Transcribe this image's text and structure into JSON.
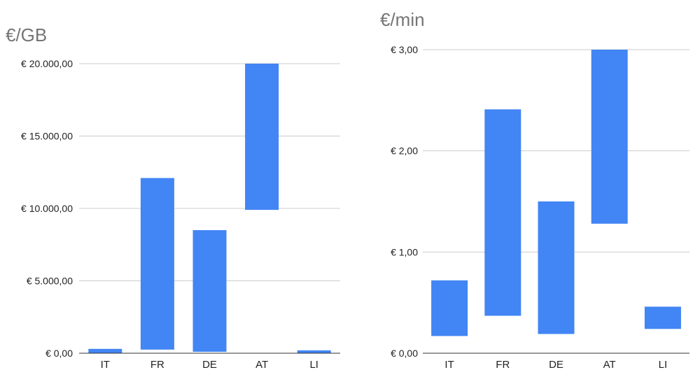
{
  "colors": {
    "bar": "#4285f4",
    "grid": "#cccccc",
    "baseline": "#333333",
    "title": "#757575",
    "text": "#222222"
  },
  "chart_data": [
    {
      "type": "bar",
      "subtype": "floating-range",
      "title": "€/GB",
      "xlabel": "",
      "ylabel": "",
      "categories": [
        "IT",
        "FR",
        "DE",
        "AT",
        "LI"
      ],
      "series": [
        {
          "ranges": [
            [
              0,
              300
            ],
            [
              250,
              12100
            ],
            [
              100,
              8500
            ],
            [
              9900,
              20000
            ],
            [
              0,
              200
            ]
          ]
        }
      ],
      "ylim": [
        0,
        20000
      ],
      "y_ticks": [
        0,
        5000,
        10000,
        15000,
        20000
      ],
      "y_tick_labels": [
        "€ 0,00",
        "€ 5.000,00",
        "€ 10.000,00",
        "€ 15.000,00",
        "€ 20.000,00"
      ],
      "grid": true,
      "legend": "none"
    },
    {
      "type": "bar",
      "subtype": "floating-range",
      "title": "€/min",
      "xlabel": "",
      "ylabel": "",
      "categories": [
        "IT",
        "FR",
        "DE",
        "AT",
        "LI"
      ],
      "series": [
        {
          "ranges": [
            [
              0.17,
              0.72
            ],
            [
              0.37,
              2.41
            ],
            [
              0.19,
              1.5
            ],
            [
              1.28,
              3.0
            ],
            [
              0.24,
              0.46
            ]
          ]
        }
      ],
      "ylim": [
        0,
        3
      ],
      "y_ticks": [
        0,
        1,
        2,
        3
      ],
      "y_tick_labels": [
        "€ 0,00",
        "€ 1,00",
        "€ 2,00",
        "€ 3,00"
      ],
      "grid": true,
      "legend": "none"
    }
  ]
}
